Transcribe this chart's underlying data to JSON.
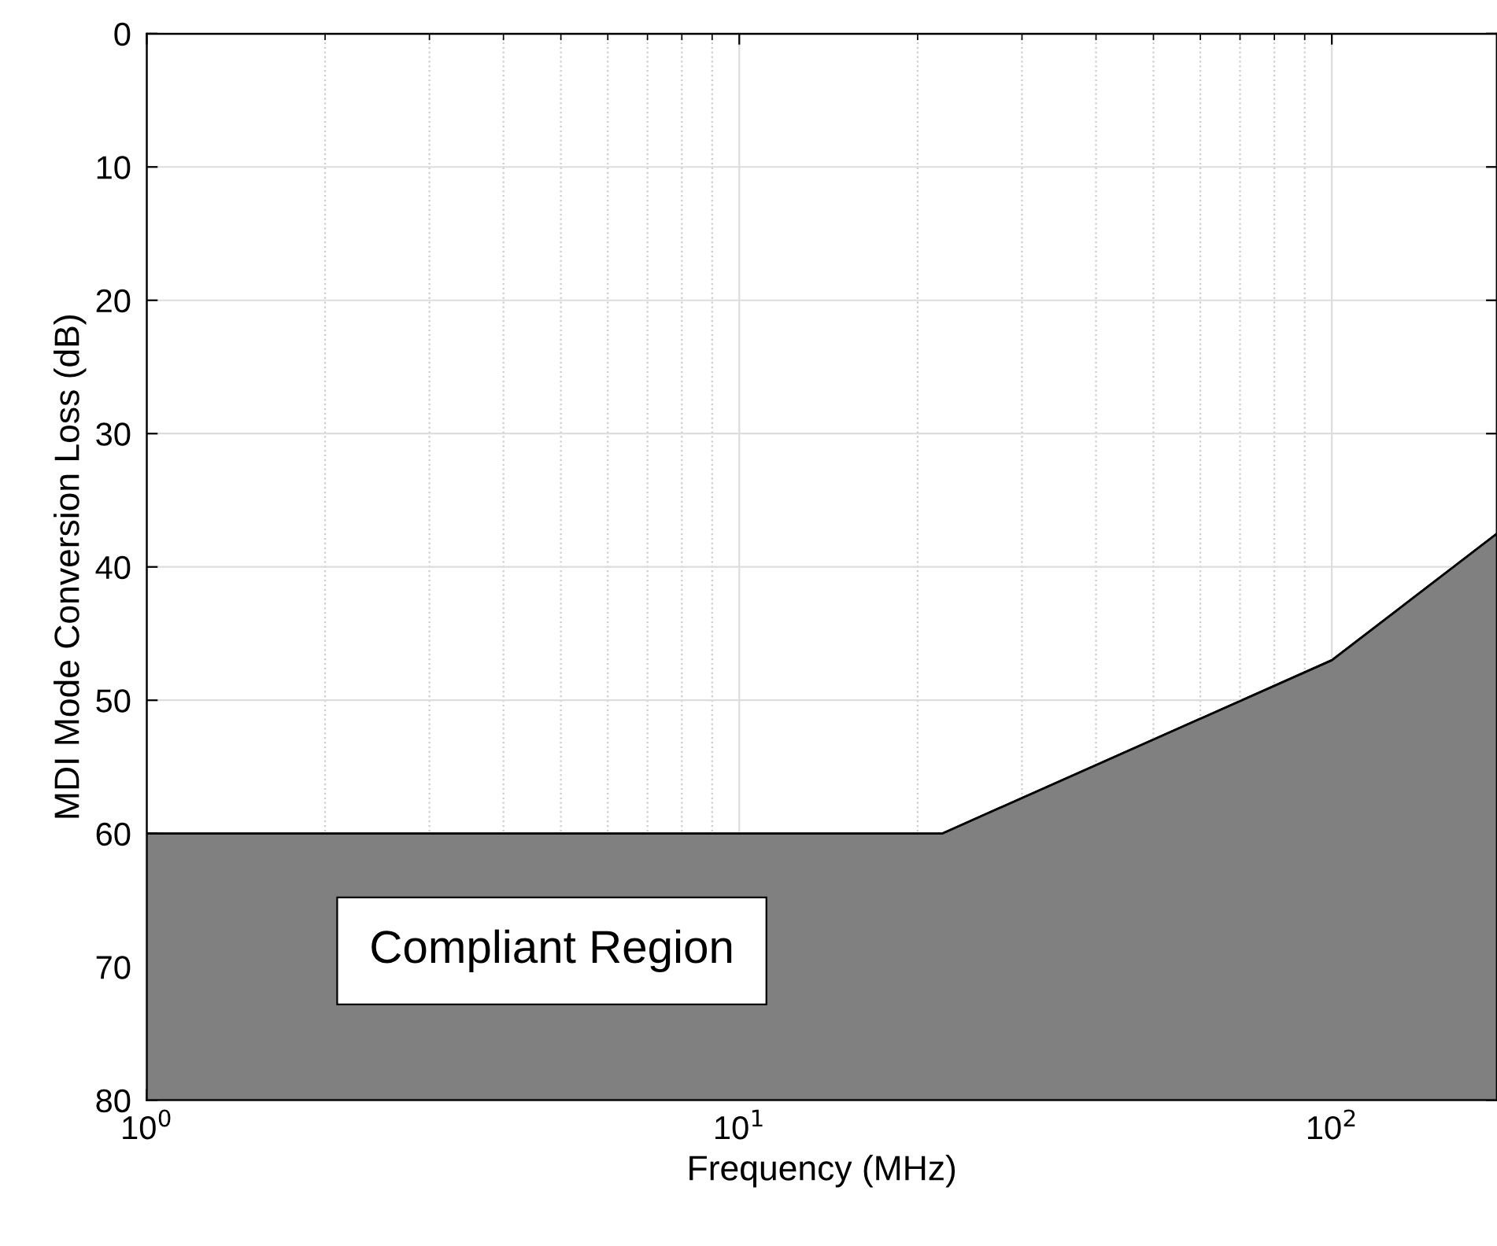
{
  "chart_data": {
    "type": "area",
    "xlabel": "Frequency (MHz)",
    "ylabel": "MDI Mode Conversion Loss (dB)",
    "x": [
      1,
      22,
      100,
      190
    ],
    "stacked": true,
    "series": [
      {
        "color": "#ffffff",
        "values": [
          60,
          60,
          47,
          37.5
        ]
      },
      {
        "color": "#808080",
        "values": [
          20,
          20,
          33,
          42.5
        ]
      }
    ],
    "xlim": [
      1,
      190
    ],
    "ylim": [
      80,
      0
    ],
    "xticks": [
      {
        "value": 1,
        "label": "10$^{0}$"
      },
      {
        "value": 10,
        "label": "10$^{1}$"
      },
      {
        "value": 100,
        "label": "10$^{2}$"
      }
    ],
    "yticks": [
      0,
      10,
      20,
      30,
      40,
      50,
      60,
      70,
      80
    ],
    "log": "x",
    "grid": true,
    "legend": false,
    "annotations": [
      "Compliant Region"
    ]
  }
}
